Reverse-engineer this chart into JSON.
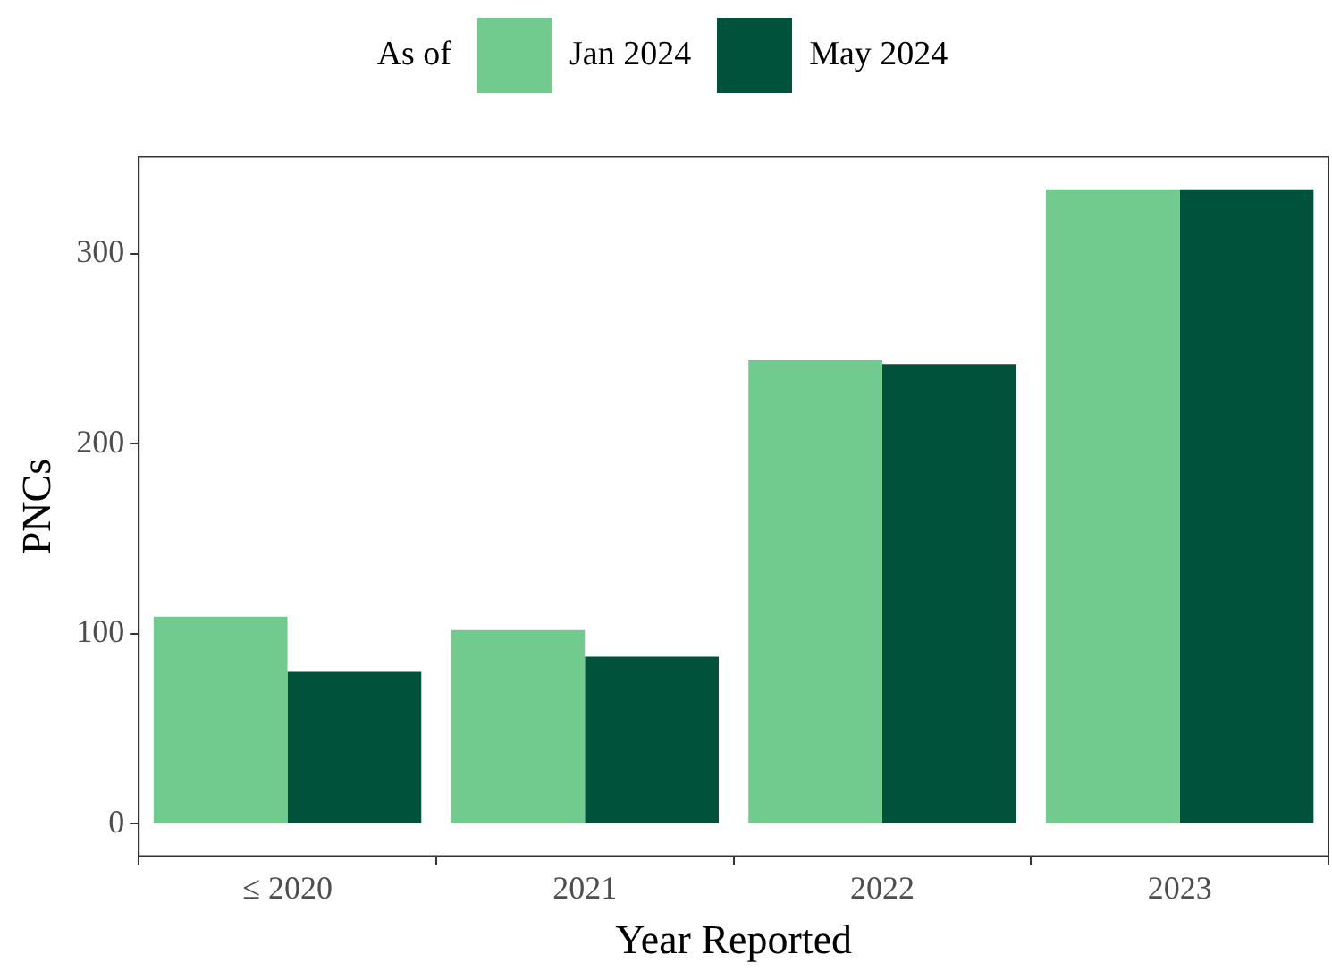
{
  "chart_data": {
    "type": "bar",
    "xlabel": "Year Reported",
    "ylabel": "PNCs",
    "legend_title": "As of",
    "categories": [
      "≤ 2020",
      "2021",
      "2022",
      "2023"
    ],
    "series": [
      {
        "name": "Jan 2024",
        "color": "#71cb8e",
        "values": [
          109,
          102,
          244,
          334
        ]
      },
      {
        "name": "May 2024",
        "color": "#00533a",
        "values": [
          80,
          88,
          242,
          334
        ]
      }
    ],
    "ylim": [
      -17,
      351
    ],
    "yticks": [
      0,
      100,
      200,
      300
    ],
    "grid": false,
    "legend": "top"
  }
}
